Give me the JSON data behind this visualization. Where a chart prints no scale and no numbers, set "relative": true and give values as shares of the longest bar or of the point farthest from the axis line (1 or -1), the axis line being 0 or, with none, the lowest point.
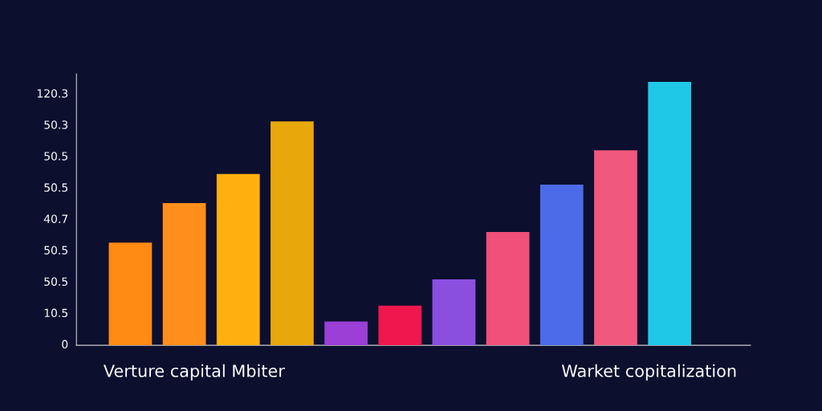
{
  "chart_data": {
    "type": "bar",
    "relative": true,
    "categories": [
      null,
      null,
      null,
      null,
      null,
      null,
      null,
      null,
      null,
      null,
      null
    ],
    "values": [
      0.39,
      0.54,
      0.65,
      0.85,
      0.09,
      0.15,
      0.25,
      0.43,
      0.61,
      0.74,
      1
    ],
    "colors": [
      "#ff8a14",
      "#ff8f1a",
      "#ffb00f",
      "#e8a80c",
      "#9b3fd6",
      "#f0174e",
      "#8b4fe0",
      "#f0507a",
      "#4c6be8",
      "#f0587e",
      "#1ec8e6"
    ],
    "annotations": [
      "Verture capital Mbiter",
      "Warket copitalization",
      "120.3",
      "50.3",
      "50.5",
      "50.5",
      "40.7",
      "50.5",
      "50.5",
      "10.5",
      "0"
    ]
  }
}
